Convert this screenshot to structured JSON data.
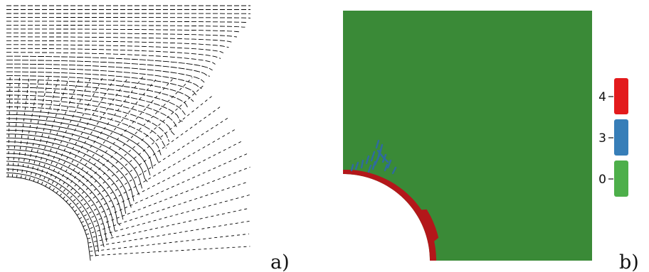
{
  "panels": [
    {
      "id": "a",
      "label": "a)"
    },
    {
      "id": "b",
      "label": "b)"
    }
  ],
  "legend": {
    "items": [
      {
        "label": "4",
        "color": "#e31a1c"
      },
      {
        "label": "3",
        "color": "#377eb8"
      },
      {
        "label": "0",
        "color": "#4daf4a"
      }
    ]
  },
  "colors": {
    "domain_fill": "#3a8a37",
    "boundary_layer": "#b3171a",
    "crack_marks": "#2f6aa0",
    "lines": "#000000"
  }
}
